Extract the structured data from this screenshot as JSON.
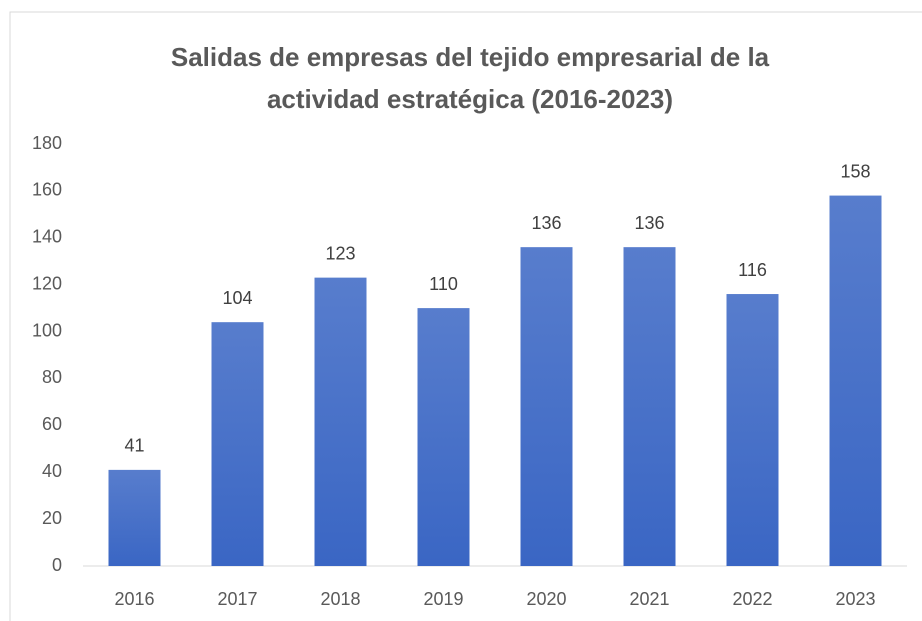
{
  "chart_data": {
    "type": "bar",
    "title": "Salidas de empresas del tejido empresarial de la actividad estratégica (2016-2023)",
    "categories": [
      "2016",
      "2017",
      "2018",
      "2019",
      "2020",
      "2021",
      "2022",
      "2023"
    ],
    "values": [
      41,
      104,
      123,
      110,
      136,
      136,
      116,
      158
    ],
    "color": "#3a66c4",
    "ylim": [
      0,
      180
    ],
    "yticks": [
      0,
      20,
      40,
      60,
      80,
      100,
      120,
      140,
      160,
      180
    ],
    "grid": false,
    "data_labels": true
  }
}
